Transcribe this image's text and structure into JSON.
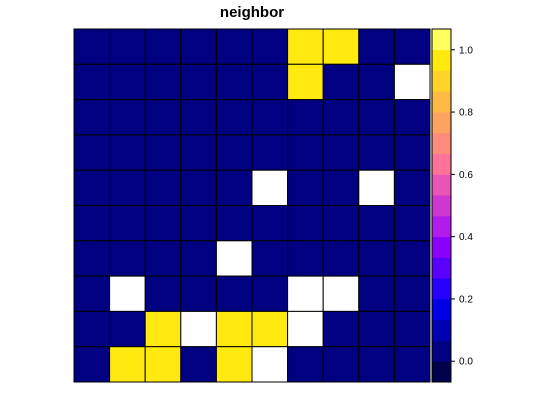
{
  "chart_data": {
    "type": "heatmap",
    "title": "neighbor",
    "rows": 10,
    "cols": 10,
    "values": [
      [
        0,
        0,
        0,
        0,
        0,
        0,
        1,
        1,
        0,
        0
      ],
      [
        0,
        0,
        0,
        0,
        0,
        0,
        1,
        0,
        0,
        null
      ],
      [
        0,
        0,
        0,
        0,
        0,
        0,
        0,
        0,
        0,
        0
      ],
      [
        0,
        0,
        0,
        0,
        0,
        0,
        0,
        0,
        0,
        0
      ],
      [
        0,
        0,
        0,
        0,
        0,
        null,
        0,
        0,
        null,
        0
      ],
      [
        0,
        0,
        0,
        0,
        0,
        0,
        0,
        0,
        0,
        0
      ],
      [
        0,
        0,
        0,
        0,
        null,
        0,
        0,
        0,
        0,
        0
      ],
      [
        0,
        null,
        0,
        0,
        0,
        0,
        null,
        null,
        0,
        0
      ],
      [
        0,
        0,
        1,
        null,
        1,
        1,
        null,
        0,
        0,
        0
      ],
      [
        0,
        1,
        1,
        0,
        1,
        null,
        0,
        0,
        0,
        0
      ]
    ],
    "colorbar": {
      "range": [
        -0.0667,
        1.0667
      ],
      "ticks": [
        0.0,
        0.2,
        0.4,
        0.6,
        0.8,
        1.0
      ],
      "tick_labels": [
        "0.0",
        "0.2",
        "0.4",
        "0.6",
        "0.8",
        "1.0"
      ],
      "colors": [
        "#00004D",
        "#000080",
        "#0000B3",
        "#0000E6",
        "#2600FF",
        "#5A00FF",
        "#8C00FF",
        "#B21BEC",
        "#CF38D0",
        "#E855B4",
        "#FF7398",
        "#FF8B7D",
        "#FFA261",
        "#FFBA45",
        "#FFD32A",
        "#FFE90F",
        "#FFFF60"
      ]
    },
    "na_color": "#FFFFFF",
    "grid": true
  }
}
